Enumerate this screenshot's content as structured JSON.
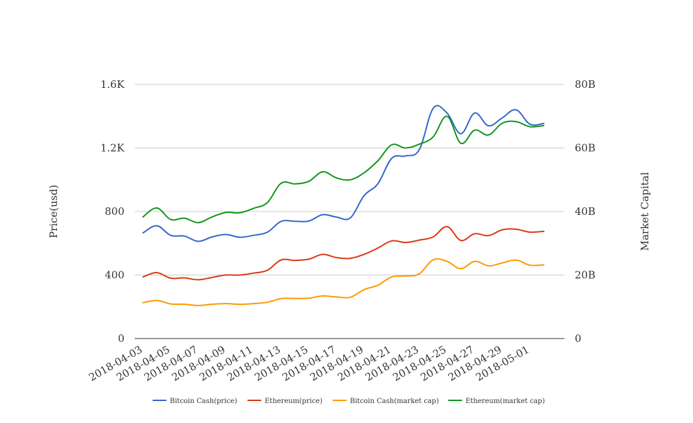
{
  "chart_data": {
    "type": "line",
    "title": "",
    "y_left": {
      "label": "Price(usd)",
      "range": [
        0,
        1600
      ],
      "ticks": [
        0,
        400,
        800,
        1200,
        1600
      ],
      "tick_labels": [
        "0",
        "400",
        "800",
        "1.2K",
        "1.6K"
      ]
    },
    "y_right": {
      "label": "Market Capital",
      "range": [
        0,
        80000000000
      ],
      "ticks": [
        0,
        20000000000,
        40000000000,
        60000000000,
        80000000000
      ],
      "tick_labels": [
        "0",
        "20B",
        "40B",
        "60B",
        "80B"
      ]
    },
    "x_labels": [
      "2018-04-03",
      "2018-04-05",
      "2018-04-07",
      "2018-04-09",
      "2018-04-11",
      "2018-04-13",
      "2018-04-15",
      "2018-04-17",
      "2018-04-19",
      "2018-04-21",
      "2018-04-23",
      "2018-04-25",
      "2018-04-27",
      "2018-04-29",
      "2018-05-01"
    ],
    "x": [
      "2018-04-03",
      "2018-04-04",
      "2018-04-05",
      "2018-04-06",
      "2018-04-07",
      "2018-04-08",
      "2018-04-09",
      "2018-04-10",
      "2018-04-11",
      "2018-04-12",
      "2018-04-13",
      "2018-04-14",
      "2018-04-15",
      "2018-04-16",
      "2018-04-17",
      "2018-04-18",
      "2018-04-19",
      "2018-04-20",
      "2018-04-21",
      "2018-04-22",
      "2018-04-23",
      "2018-04-24",
      "2018-04-25",
      "2018-04-26",
      "2018-04-27",
      "2018-04-28",
      "2018-04-29",
      "2018-04-30",
      "2018-05-01",
      "2018-05-02"
    ],
    "series": [
      {
        "name": "Bitcoin Cash(price)",
        "axis": "left",
        "color": "#3366cc",
        "values": [
          665,
          710,
          650,
          645,
          612,
          640,
          655,
          638,
          650,
          670,
          738,
          738,
          740,
          780,
          765,
          760,
          900,
          975,
          1135,
          1150,
          1190,
          1450,
          1420,
          1290,
          1420,
          1340,
          1390,
          1440,
          1350,
          1355
        ]
      },
      {
        "name": "Ethereum(price)",
        "axis": "left",
        "color": "#dc3912",
        "values": [
          388,
          415,
          380,
          382,
          370,
          385,
          400,
          400,
          412,
          430,
          495,
          492,
          500,
          530,
          510,
          505,
          530,
          570,
          615,
          605,
          620,
          640,
          705,
          618,
          660,
          648,
          685,
          688,
          670,
          675
        ]
      },
      {
        "name": "Bitcoin Cash(market cap)",
        "axis": "right",
        "color": "#ff9900",
        "values": [
          11300000000,
          12000000000,
          10900000000,
          10800000000,
          10400000000,
          10800000000,
          11000000000,
          10800000000,
          11000000000,
          11400000000,
          12600000000,
          12600000000,
          12700000000,
          13400000000,
          13100000000,
          13000000000,
          15400000000,
          16800000000,
          19400000000,
          19700000000,
          20400000000,
          24800000000,
          24300000000,
          22000000000,
          24300000000,
          22900000000,
          23800000000,
          24700000000,
          23100000000,
          23200000000
        ]
      },
      {
        "name": "Ethereum(market cap)",
        "axis": "right",
        "color": "#109618",
        "values": [
          38300000000,
          41100000000,
          37500000000,
          37900000000,
          36500000000,
          38300000000,
          39700000000,
          39600000000,
          41000000000,
          42800000000,
          48900000000,
          48700000000,
          49500000000,
          52500000000,
          50600000000,
          50000000000,
          52200000000,
          56000000000,
          61000000000,
          60000000000,
          61200000000,
          63500000000,
          70000000000,
          61500000000,
          65600000000,
          64100000000,
          67800000000,
          68300000000,
          66700000000,
          67100000000
        ]
      }
    ],
    "legend": [
      "Bitcoin Cash(price)",
      "Ethereum(price)",
      "Bitcoin Cash(market cap)",
      "Ethereum(market cap)"
    ],
    "legend_position": "bottom",
    "grid": true
  }
}
